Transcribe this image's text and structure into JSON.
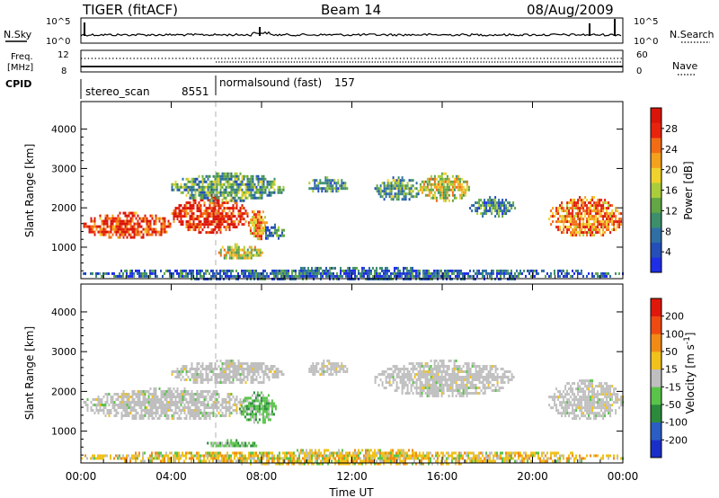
{
  "header": {
    "title": "TIGER (fitACF)",
    "beam": "Beam 14",
    "date": "08/Aug/2009"
  },
  "panels": {
    "sky": {
      "left_label": "N.Sky",
      "left_ticks": [
        "10^5",
        "10^0"
      ],
      "right_label": "N.Search",
      "right_ticks": [
        "10^5",
        "10^0"
      ]
    },
    "freq": {
      "left_label_lines": [
        "Freq.",
        "[MHz]"
      ],
      "left_ticks": [
        "12",
        "8"
      ],
      "right_label": "Nave",
      "right_ticks": [
        "60",
        "0"
      ]
    },
    "cpid": {
      "label": "CPID",
      "modes": [
        {
          "name": "stereo_scan",
          "id": "8551",
          "start_hour": 0
        },
        {
          "name": "normalsound (fast)",
          "id": "157",
          "start_hour": 6
        }
      ]
    }
  },
  "chart_data": [
    {
      "type": "heatmap",
      "title": "",
      "xlabel": "",
      "ylabel": "Slant Range [km]",
      "xlim_hours": [
        0,
        24
      ],
      "ylim_km": [
        200,
        4700
      ],
      "yticks": [
        "1000",
        "2000",
        "3000",
        "4000"
      ],
      "xticks": [
        "00:00",
        "04:00",
        "08:00",
        "12:00",
        "16:00",
        "20:00",
        "00:00"
      ],
      "colorbar": {
        "label": "Power [dB]",
        "ticks": [
          "4",
          "8",
          "12",
          "16",
          "20",
          "24",
          "28"
        ],
        "colors": [
          "#1f2de6",
          "#244fb8",
          "#2f6fa5",
          "#3c8f6a",
          "#62a646",
          "#aacd3c",
          "#f0d22c",
          "#f4a11e",
          "#f26c16",
          "#e8240e",
          "#d9150a"
        ]
      },
      "echo_regions": [
        {
          "t0": 0.1,
          "t1": 4.0,
          "r0": 1250,
          "r1": 1900,
          "level": 0.85
        },
        {
          "t0": 4.0,
          "t1": 7.4,
          "r0": 1400,
          "r1": 2300,
          "level": 0.9
        },
        {
          "t0": 7.4,
          "t1": 8.2,
          "r0": 1200,
          "r1": 2000,
          "level": 0.7
        },
        {
          "t0": 6.0,
          "t1": 8.0,
          "r0": 700,
          "r1": 1100,
          "level": 0.55
        },
        {
          "t0": 4.0,
          "t1": 9.0,
          "r0": 2200,
          "r1": 2900,
          "level": 0.35
        },
        {
          "t0": 8.0,
          "t1": 9.0,
          "r0": 1200,
          "r1": 1600,
          "level": 0.3
        },
        {
          "t0": 10.0,
          "t1": 11.8,
          "r0": 2400,
          "r1": 2800,
          "level": 0.3
        },
        {
          "t0": 13.0,
          "t1": 15.0,
          "r0": 2200,
          "r1": 2800,
          "level": 0.35
        },
        {
          "t0": 15.0,
          "t1": 17.2,
          "r0": 2200,
          "r1": 2900,
          "level": 0.55
        },
        {
          "t0": 17.2,
          "t1": 19.2,
          "r0": 1800,
          "r1": 2300,
          "level": 0.3
        },
        {
          "t0": 20.7,
          "t1": 24.0,
          "r0": 1300,
          "r1": 2300,
          "level": 0.75
        },
        {
          "t0": 0.0,
          "t1": 24.0,
          "r0": 200,
          "r1": 500,
          "level": 0.2
        }
      ]
    },
    {
      "type": "heatmap",
      "title": "",
      "xlabel": "Time UT",
      "ylabel": "Slant Range [km]",
      "xlim_hours": [
        0,
        24
      ],
      "ylim_km": [
        200,
        4700
      ],
      "yticks": [
        "1000",
        "2000",
        "3000",
        "4000"
      ],
      "xticks": [
        "00:00",
        "04:00",
        "08:00",
        "12:00",
        "16:00",
        "20:00",
        "00:00"
      ],
      "colorbar": {
        "label": "Velocity [m s^-1]",
        "ticks": [
          "200",
          "100",
          "50",
          "15",
          "-15",
          "-50",
          "-100",
          "-200"
        ],
        "colors": [
          "#1a2fc9",
          "#2c5dc4",
          "#2b8a3c",
          "#59c34a",
          "#bfbfbf",
          "#f0c21b",
          "#f28a18",
          "#ee4a12",
          "#e0180c"
        ]
      },
      "echo_regions": [
        {
          "t0": 0.1,
          "t1": 7.5,
          "r0": 1300,
          "r1": 2100,
          "vel": "gray"
        },
        {
          "t0": 7.0,
          "t1": 8.6,
          "r0": 1200,
          "r1": 2000,
          "vel": "green"
        },
        {
          "t0": 5.5,
          "t1": 7.8,
          "r0": 600,
          "r1": 800,
          "vel": "green"
        },
        {
          "t0": 4.0,
          "t1": 9.0,
          "r0": 2200,
          "r1": 2800,
          "vel": "gray"
        },
        {
          "t0": 10.0,
          "t1": 11.8,
          "r0": 2400,
          "r1": 2800,
          "vel": "gray"
        },
        {
          "t0": 13.0,
          "t1": 19.2,
          "r0": 1900,
          "r1": 2800,
          "vel": "gray"
        },
        {
          "t0": 20.7,
          "t1": 24.0,
          "r0": 1300,
          "r1": 2300,
          "vel": "gray"
        },
        {
          "t0": 0.0,
          "t1": 24.0,
          "r0": 200,
          "r1": 550,
          "vel": "orange"
        }
      ]
    }
  ]
}
